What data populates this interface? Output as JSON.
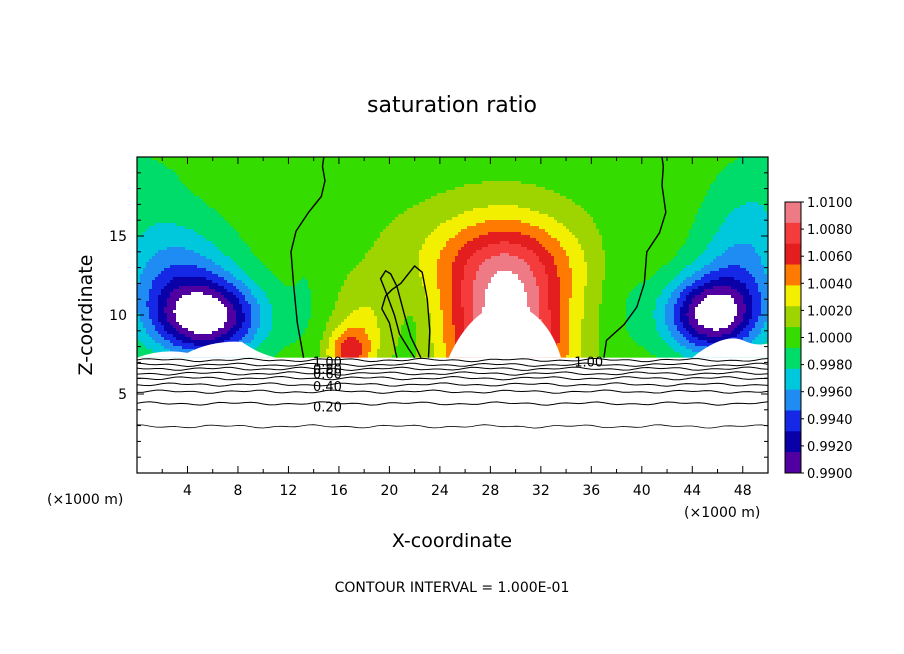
{
  "chart_data": {
    "type": "heatmap",
    "title": "saturation ratio",
    "xlabel": "X-coordinate",
    "ylabel": "Z-coordinate",
    "x_unit_left": "(×1000 m)",
    "x_unit_right": "(×1000 m)",
    "xlim": [
      0,
      50
    ],
    "ylim": [
      0,
      20
    ],
    "x_ticks": [
      4,
      8,
      12,
      16,
      20,
      24,
      28,
      32,
      36,
      40,
      44,
      48
    ],
    "y_ticks": [
      5,
      10,
      15
    ],
    "terrain_top_z": 7.3,
    "colorbar": {
      "levels": [
        "1.0100",
        "1.0080",
        "1.0060",
        "1.0040",
        "1.0020",
        "1.0000",
        "0.9980",
        "0.9960",
        "0.9940",
        "0.9920",
        "0.9900"
      ],
      "colors": [
        "#ee7a86",
        "#f43c3c",
        "#e41e1e",
        "#ff7a00",
        "#f2f000",
        "#9ed400",
        "#34dc00",
        "#00dc6a",
        "#00c8dc",
        "#1e8cf2",
        "#1428e6",
        "#0a00a8",
        "#5000a0"
      ]
    },
    "contour_labels": [
      {
        "text": "1.00",
        "x": 14.3,
        "z": 7.0
      },
      {
        "text": "0.80",
        "x": 14.3,
        "z": 6.55
      },
      {
        "text": "0.60",
        "x": 14.3,
        "z": 6.25
      },
      {
        "text": "0.40",
        "x": 14.3,
        "z": 5.45
      },
      {
        "text": "0.20",
        "x": 14.3,
        "z": 4.15
      },
      {
        "text": "1.00",
        "x": 35.0,
        "z": 7.0
      }
    ],
    "legend_placement": "right",
    "grid": false
  },
  "footer": {
    "contour_interval": "CONTOUR INTERVAL = 1.000E-01"
  }
}
